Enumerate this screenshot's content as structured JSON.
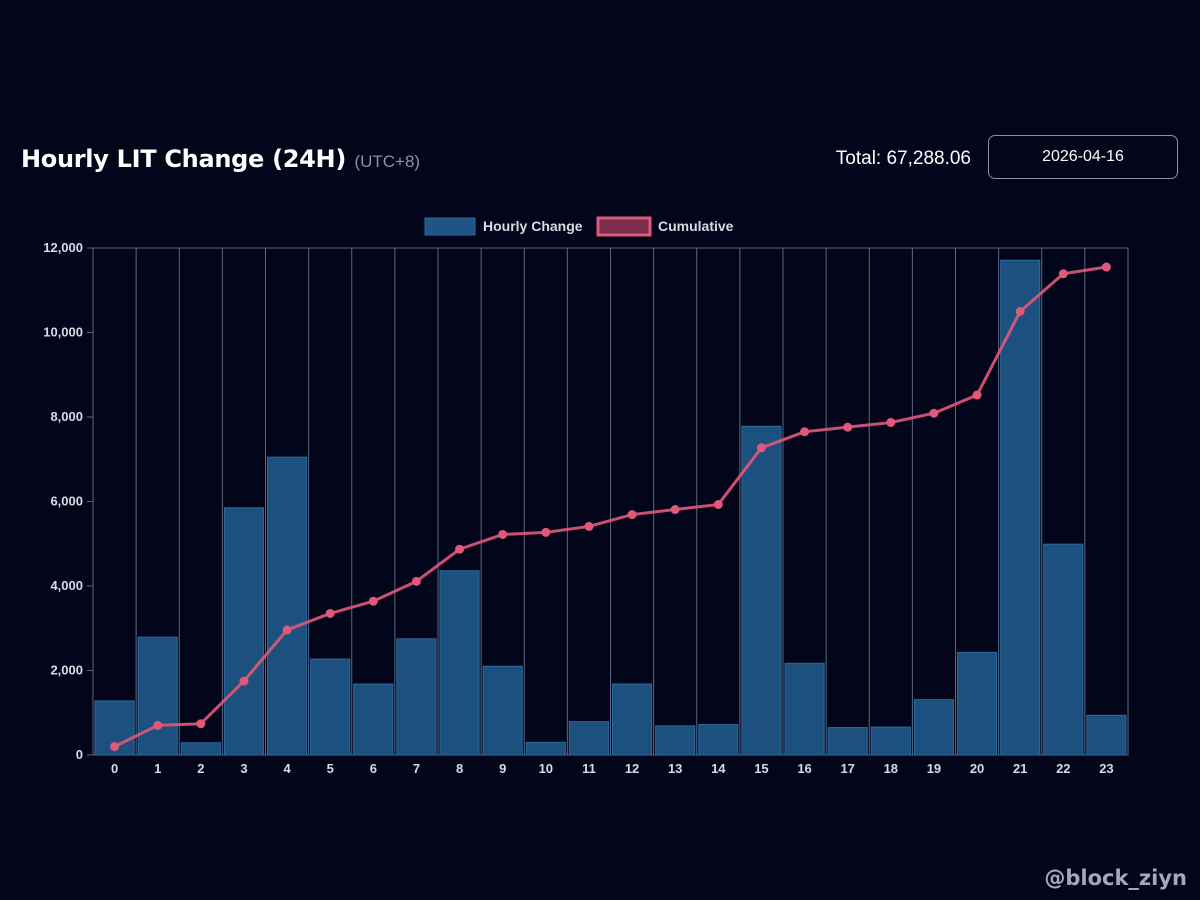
{
  "header": {
    "title": "Hourly LIT Change (24H)",
    "subtitle": "(UTC+8)",
    "total": "Total: 67,288.06",
    "date": "2026-04-16"
  },
  "watermark": "@block_ziyn",
  "colors": {
    "background": "#03061a",
    "bar_fill": "#1e5585",
    "line": "#e0587a",
    "grid": "#5c6784"
  },
  "chart_data": {
    "type": "bar",
    "categories": [
      "0",
      "1",
      "2",
      "3",
      "4",
      "5",
      "6",
      "7",
      "8",
      "9",
      "10",
      "11",
      "12",
      "13",
      "14",
      "15",
      "16",
      "17",
      "18",
      "19",
      "20",
      "21",
      "22",
      "23"
    ],
    "series": [
      {
        "name": "Hourly Change",
        "type": "bar",
        "values": [
          1280,
          2790,
          290,
          5850,
          7050,
          2270,
          1680,
          2750,
          4360,
          2100,
          300,
          790,
          1680,
          690,
          720,
          7780,
          2170,
          650,
          660,
          1310,
          2430,
          11710,
          4990,
          940
        ]
      },
      {
        "name": "Cumulative",
        "type": "line",
        "values": [
          200,
          700,
          740,
          1750,
          2960,
          3350,
          3640,
          4110,
          4870,
          5220,
          5270,
          5410,
          5690,
          5810,
          5930,
          7270,
          7650,
          7760,
          7870,
          8090,
          8520,
          10500,
          11390,
          11550
        ]
      }
    ],
    "legend": [
      "Hourly Change",
      "Cumulative"
    ],
    "legend_position": "top-center",
    "yticks": [
      "0",
      "2,000",
      "4,000",
      "6,000",
      "8,000",
      "10,000",
      "12,000"
    ],
    "ylim": [
      0,
      12000
    ],
    "grid": "vertical",
    "xlabel": "",
    "ylabel": ""
  }
}
